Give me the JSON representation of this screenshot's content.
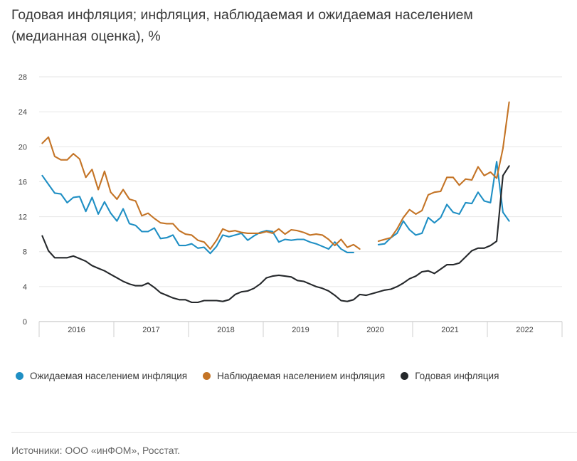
{
  "title_line1": "Годовая инфляция; инфляция, наблюдаемая и ожидаемая населением",
  "title_line2": "(медианная оценка), %",
  "source": "Источники: ООО «инФОМ», Росстат.",
  "colors": {
    "expected": "#1f8fc4",
    "observed": "#c47426",
    "annual": "#25282b",
    "grid": "#e6e6e6",
    "axis_text": "#444444"
  },
  "chart_data": {
    "type": "line",
    "title": "Годовая инфляция; инфляция, наблюдаемая и ожидаемая населением (медианная оценка), %",
    "xlabel": "",
    "ylabel": "",
    "ylim": [
      0,
      28
    ],
    "yticks": [
      0,
      4,
      8,
      12,
      16,
      20,
      24,
      28
    ],
    "year_labels": [
      "2016",
      "2017",
      "2018",
      "2019",
      "2020",
      "2021",
      "2022"
    ],
    "x_start": "2016-01",
    "x_end": "2022-04",
    "grid": true,
    "legend_position": "bottom-left",
    "series": [
      {
        "name": "Ожидаемая населением инфляция",
        "color": "#1f8fc4",
        "points": [
          [
            "2016-01",
            16.7
          ],
          [
            "2016-02",
            15.7
          ],
          [
            "2016-03",
            14.7
          ],
          [
            "2016-04",
            14.6
          ],
          [
            "2016-05",
            13.6
          ],
          [
            "2016-06",
            14.2
          ],
          [
            "2016-07",
            14.3
          ],
          [
            "2016-08",
            12.6
          ],
          [
            "2016-09",
            14.2
          ],
          [
            "2016-10",
            12.3
          ],
          [
            "2016-11",
            13.7
          ],
          [
            "2016-12",
            12.4
          ],
          [
            "2017-01",
            11.5
          ],
          [
            "2017-02",
            12.9
          ],
          [
            "2017-03",
            11.2
          ],
          [
            "2017-04",
            11.0
          ],
          [
            "2017-05",
            10.3
          ],
          [
            "2017-06",
            10.3
          ],
          [
            "2017-07",
            10.7
          ],
          [
            "2017-08",
            9.5
          ],
          [
            "2017-09",
            9.6
          ],
          [
            "2017-10",
            9.9
          ],
          [
            "2017-11",
            8.7
          ],
          [
            "2017-12",
            8.7
          ],
          [
            "2018-01",
            8.9
          ],
          [
            "2018-02",
            8.4
          ],
          [
            "2018-03",
            8.5
          ],
          [
            "2018-04",
            7.8
          ],
          [
            "2018-05",
            8.6
          ],
          [
            "2018-06",
            9.9
          ],
          [
            "2018-07",
            9.7
          ],
          [
            "2018-08",
            9.9
          ],
          [
            "2018-09",
            10.1
          ],
          [
            "2018-10",
            9.3
          ],
          [
            "2018-11",
            9.8
          ],
          [
            "2018-12",
            10.2
          ],
          [
            "2019-01",
            10.4
          ],
          [
            "2019-02",
            10.3
          ],
          [
            "2019-03",
            9.1
          ],
          [
            "2019-04",
            9.4
          ],
          [
            "2019-05",
            9.3
          ],
          [
            "2019-06",
            9.4
          ],
          [
            "2019-07",
            9.4
          ],
          [
            "2019-08",
            9.1
          ],
          [
            "2019-09",
            8.9
          ],
          [
            "2019-10",
            8.6
          ],
          [
            "2019-11",
            8.3
          ],
          [
            "2019-12",
            9.1
          ],
          [
            "2020-01",
            8.3
          ],
          [
            "2020-02",
            7.9
          ],
          [
            "2020-03",
            7.9
          ],
          [
            "2020-04",
            null
          ],
          [
            "2020-05",
            null
          ],
          [
            "2020-06",
            null
          ],
          [
            "2020-07",
            8.8
          ],
          [
            "2020-08",
            8.9
          ],
          [
            "2020-09",
            9.6
          ],
          [
            "2020-10",
            10.1
          ],
          [
            "2020-11",
            11.5
          ],
          [
            "2020-12",
            10.5
          ],
          [
            "2021-01",
            9.9
          ],
          [
            "2021-02",
            10.1
          ],
          [
            "2021-03",
            11.9
          ],
          [
            "2021-04",
            11.3
          ],
          [
            "2021-05",
            11.9
          ],
          [
            "2021-06",
            13.4
          ],
          [
            "2021-07",
            12.5
          ],
          [
            "2021-08",
            12.3
          ],
          [
            "2021-09",
            13.6
          ],
          [
            "2021-10",
            13.5
          ],
          [
            "2021-11",
            14.8
          ],
          [
            "2021-12",
            13.8
          ],
          [
            "2022-01",
            13.6
          ],
          [
            "2022-02",
            18.3
          ],
          [
            "2022-03",
            12.5
          ],
          [
            "2022-04",
            11.5
          ]
        ]
      },
      {
        "name": "Наблюдаемая населением инфляция",
        "color": "#c47426",
        "points": [
          [
            "2016-01",
            20.4
          ],
          [
            "2016-02",
            21.1
          ],
          [
            "2016-03",
            18.9
          ],
          [
            "2016-04",
            18.5
          ],
          [
            "2016-05",
            18.5
          ],
          [
            "2016-06",
            19.2
          ],
          [
            "2016-07",
            18.6
          ],
          [
            "2016-08",
            16.5
          ],
          [
            "2016-09",
            17.4
          ],
          [
            "2016-10",
            15.1
          ],
          [
            "2016-11",
            17.2
          ],
          [
            "2016-12",
            14.8
          ],
          [
            "2017-01",
            14.0
          ],
          [
            "2017-02",
            15.1
          ],
          [
            "2017-03",
            14.0
          ],
          [
            "2017-04",
            13.8
          ],
          [
            "2017-05",
            12.1
          ],
          [
            "2017-06",
            12.4
          ],
          [
            "2017-07",
            11.8
          ],
          [
            "2017-08",
            11.3
          ],
          [
            "2017-09",
            11.2
          ],
          [
            "2017-10",
            11.2
          ],
          [
            "2017-11",
            10.4
          ],
          [
            "2017-12",
            10.0
          ],
          [
            "2018-01",
            9.9
          ],
          [
            "2018-02",
            9.3
          ],
          [
            "2018-03",
            9.1
          ],
          [
            "2018-04",
            8.3
          ],
          [
            "2018-05",
            9.3
          ],
          [
            "2018-06",
            10.6
          ],
          [
            "2018-07",
            10.3
          ],
          [
            "2018-08",
            10.4
          ],
          [
            "2018-09",
            10.2
          ],
          [
            "2018-10",
            10.1
          ],
          [
            "2018-11",
            10.1
          ],
          [
            "2018-12",
            10.1
          ],
          [
            "2019-01",
            10.3
          ],
          [
            "2019-02",
            10.1
          ],
          [
            "2019-03",
            10.6
          ],
          [
            "2019-04",
            10.0
          ],
          [
            "2019-05",
            10.5
          ],
          [
            "2019-06",
            10.4
          ],
          [
            "2019-07",
            10.2
          ],
          [
            "2019-08",
            9.9
          ],
          [
            "2019-09",
            10.0
          ],
          [
            "2019-10",
            9.9
          ],
          [
            "2019-11",
            9.4
          ],
          [
            "2019-12",
            8.7
          ],
          [
            "2020-01",
            9.4
          ],
          [
            "2020-02",
            8.5
          ],
          [
            "2020-03",
            8.8
          ],
          [
            "2020-04",
            8.3
          ],
          [
            "2020-05",
            null
          ],
          [
            "2020-06",
            null
          ],
          [
            "2020-07",
            9.2
          ],
          [
            "2020-08",
            9.4
          ],
          [
            "2020-09",
            9.6
          ],
          [
            "2020-10",
            10.6
          ],
          [
            "2020-11",
            11.9
          ],
          [
            "2020-12",
            12.8
          ],
          [
            "2021-01",
            12.3
          ],
          [
            "2021-02",
            12.7
          ],
          [
            "2021-03",
            14.5
          ],
          [
            "2021-04",
            14.8
          ],
          [
            "2021-05",
            14.9
          ],
          [
            "2021-06",
            16.5
          ],
          [
            "2021-07",
            16.5
          ],
          [
            "2021-08",
            15.6
          ],
          [
            "2021-09",
            16.3
          ],
          [
            "2021-10",
            16.2
          ],
          [
            "2021-11",
            17.7
          ],
          [
            "2021-12",
            16.7
          ],
          [
            "2022-01",
            17.1
          ],
          [
            "2022-02",
            16.4
          ],
          [
            "2022-03",
            19.8
          ],
          [
            "2022-04",
            25.1
          ]
        ]
      },
      {
        "name": "Годовая инфляция",
        "color": "#25282b",
        "points": [
          [
            "2016-01",
            9.8
          ],
          [
            "2016-02",
            8.1
          ],
          [
            "2016-03",
            7.3
          ],
          [
            "2016-04",
            7.3
          ],
          [
            "2016-05",
            7.3
          ],
          [
            "2016-06",
            7.5
          ],
          [
            "2016-07",
            7.2
          ],
          [
            "2016-08",
            6.9
          ],
          [
            "2016-09",
            6.4
          ],
          [
            "2016-10",
            6.1
          ],
          [
            "2016-11",
            5.8
          ],
          [
            "2016-12",
            5.4
          ],
          [
            "2017-01",
            5.0
          ],
          [
            "2017-02",
            4.6
          ],
          [
            "2017-03",
            4.3
          ],
          [
            "2017-04",
            4.1
          ],
          [
            "2017-05",
            4.1
          ],
          [
            "2017-06",
            4.4
          ],
          [
            "2017-07",
            3.9
          ],
          [
            "2017-08",
            3.3
          ],
          [
            "2017-09",
            3.0
          ],
          [
            "2017-10",
            2.7
          ],
          [
            "2017-11",
            2.5
          ],
          [
            "2017-12",
            2.5
          ],
          [
            "2018-01",
            2.2
          ],
          [
            "2018-02",
            2.2
          ],
          [
            "2018-03",
            2.4
          ],
          [
            "2018-04",
            2.4
          ],
          [
            "2018-05",
            2.4
          ],
          [
            "2018-06",
            2.3
          ],
          [
            "2018-07",
            2.5
          ],
          [
            "2018-08",
            3.1
          ],
          [
            "2018-09",
            3.4
          ],
          [
            "2018-10",
            3.5
          ],
          [
            "2018-11",
            3.8
          ],
          [
            "2018-12",
            4.3
          ],
          [
            "2019-01",
            5.0
          ],
          [
            "2019-02",
            5.2
          ],
          [
            "2019-03",
            5.3
          ],
          [
            "2019-04",
            5.2
          ],
          [
            "2019-05",
            5.1
          ],
          [
            "2019-06",
            4.7
          ],
          [
            "2019-07",
            4.6
          ],
          [
            "2019-08",
            4.3
          ],
          [
            "2019-09",
            4.0
          ],
          [
            "2019-10",
            3.8
          ],
          [
            "2019-11",
            3.5
          ],
          [
            "2019-12",
            3.0
          ],
          [
            "2020-01",
            2.4
          ],
          [
            "2020-02",
            2.3
          ],
          [
            "2020-03",
            2.5
          ],
          [
            "2020-04",
            3.1
          ],
          [
            "2020-05",
            3.0
          ],
          [
            "2020-06",
            3.2
          ],
          [
            "2020-07",
            3.4
          ],
          [
            "2020-08",
            3.6
          ],
          [
            "2020-09",
            3.7
          ],
          [
            "2020-10",
            4.0
          ],
          [
            "2020-11",
            4.4
          ],
          [
            "2020-12",
            4.9
          ],
          [
            "2021-01",
            5.2
          ],
          [
            "2021-02",
            5.7
          ],
          [
            "2021-03",
            5.8
          ],
          [
            "2021-04",
            5.5
          ],
          [
            "2021-05",
            6.0
          ],
          [
            "2021-06",
            6.5
          ],
          [
            "2021-07",
            6.5
          ],
          [
            "2021-08",
            6.7
          ],
          [
            "2021-09",
            7.4
          ],
          [
            "2021-10",
            8.1
          ],
          [
            "2021-11",
            8.4
          ],
          [
            "2021-12",
            8.4
          ],
          [
            "2022-01",
            8.7
          ],
          [
            "2022-02",
            9.2
          ],
          [
            "2022-03",
            16.7
          ],
          [
            "2022-04",
            17.8
          ]
        ]
      }
    ]
  }
}
